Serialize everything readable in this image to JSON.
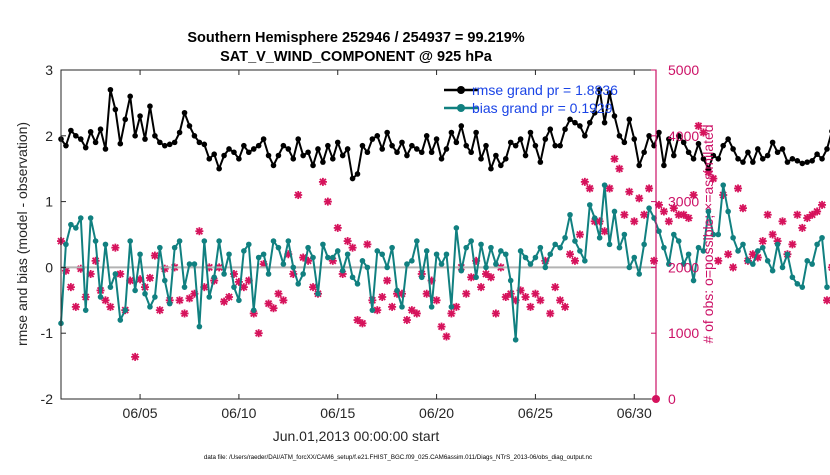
{
  "chart_data": {
    "type": "line",
    "title_line1": "Southern Hemisphere 252946 / 254937 = 99.219%",
    "title_line2": "SAT_V_WIND_COMPONENT @ 925 hPa",
    "xlabel": "Jun.01,2013 00:00:00 start",
    "ylabel_left": "rmse and bias (model - observation)",
    "ylabel_right": "# of obs: o=possible; ×=assimilated",
    "footer": "data file: /Users/raeder/DAI/ATM_forcXX/CAM6_setup/f.e21.FHIST_BGC.f09_025.CAM6assim.011/Diags_NTrS_2013-06/obs_diag_output.nc",
    "xlim": [
      1,
      31.1
    ],
    "ylim_left": [
      -2,
      3
    ],
    "ylim_right": [
      0,
      5000
    ],
    "x_ticks": [
      {
        "x": 5,
        "label": "06/05"
      },
      {
        "x": 10,
        "label": "06/10"
      },
      {
        "x": 15,
        "label": "06/15"
      },
      {
        "x": 20,
        "label": "06/20"
      },
      {
        "x": 25,
        "label": "06/25"
      },
      {
        "x": 30,
        "label": "06/30"
      }
    ],
    "y_ticks_left": [
      -2,
      -1,
      0,
      1,
      2,
      3
    ],
    "y_ticks_right": [
      0,
      1000,
      2000,
      3000,
      4000,
      5000
    ],
    "colors": {
      "rmse": "#000000",
      "bias": "#118080",
      "obs": "#d6135c",
      "right_axis": "#cc1166",
      "zero_line": "#b3b3b3",
      "legend_text": "#1a44e6"
    },
    "legend": [
      {
        "name": "rmse",
        "label": "rmse grand pr = 1.8836"
      },
      {
        "name": "bias",
        "label": "bias grand pr = 0.1929"
      }
    ],
    "series": [
      {
        "name": "rmse",
        "x_start": 1,
        "x_step": 0.25,
        "values": [
          1.95,
          1.85,
          2.08,
          2.0,
          1.95,
          1.82,
          2.06,
          1.9,
          2.1,
          1.8,
          2.7,
          2.4,
          1.88,
          2.25,
          2.6,
          2.0,
          2.3,
          1.95,
          2.45,
          2.0,
          1.9,
          1.85,
          1.87,
          1.9,
          2.05,
          2.35,
          2.15,
          2.0,
          1.9,
          1.87,
          1.65,
          1.72,
          1.5,
          1.7,
          1.8,
          1.75,
          1.65,
          1.85,
          1.75,
          1.8,
          1.85,
          1.95,
          1.7,
          1.55,
          1.7,
          1.85,
          1.8,
          1.65,
          1.95,
          1.7,
          1.75,
          1.55,
          1.8,
          1.6,
          1.85,
          1.65,
          1.9,
          1.7,
          1.8,
          1.35,
          1.42,
          1.85,
          1.75,
          1.95,
          2.0,
          1.8,
          2.05,
          1.85,
          1.75,
          1.9,
          1.7,
          1.85,
          1.8,
          1.75,
          2.0,
          1.75,
          1.95,
          1.65,
          1.8,
          2.05,
          1.9,
          2.15,
          1.85,
          1.75,
          2.05,
          1.65,
          1.85,
          1.5,
          1.7,
          1.55,
          1.65,
          1.9,
          1.85,
          1.95,
          1.7,
          2.05,
          1.85,
          1.6,
          1.95,
          2.1,
          1.85,
          1.85,
          2.1,
          2.25,
          2.2,
          2.15,
          2.0,
          2.2,
          2.35,
          2.7,
          2.2,
          2.65,
          2.3,
          2.0,
          1.9,
          2.25,
          1.95,
          1.55,
          1.75,
          2.0,
          1.85,
          2.05,
          1.55,
          1.95,
          1.7,
          2.0,
          1.9,
          1.75,
          1.65,
          1.88,
          1.65,
          1.5,
          1.7,
          1.65,
          1.85,
          1.95,
          1.8,
          1.65,
          1.6,
          1.75,
          1.6,
          1.8,
          1.65,
          1.7,
          1.9,
          1.75,
          1.8,
          1.6,
          1.65,
          1.62,
          1.58,
          1.6,
          1.62,
          1.72,
          1.65,
          1.8,
          2.07
        ]
      },
      {
        "name": "bias",
        "x_start": 1,
        "x_step": 0.25,
        "values": [
          -0.85,
          0.35,
          0.65,
          0.6,
          0.75,
          -0.65,
          0.75,
          0.4,
          -0.45,
          0.35,
          -0.3,
          -0.1,
          -0.8,
          -0.65,
          0.4,
          -0.35,
          0.2,
          -0.4,
          -0.6,
          -0.45,
          0.3,
          -0.2,
          -0.55,
          0.3,
          0.4,
          -0.3,
          0.05,
          0.05,
          -0.9,
          0.4,
          -0.45,
          -0.15,
          0.4,
          -0.1,
          0.2,
          -0.3,
          -0.5,
          0.25,
          0.35,
          -0.65,
          0.15,
          0.2,
          -0.1,
          0.4,
          0.3,
          0.05,
          0.4,
          0.0,
          -0.25,
          -0.1,
          0.3,
          0.15,
          -0.4,
          0.35,
          0.15,
          0.15,
          0.25,
          -0.05,
          0.2,
          -0.15,
          -0.25,
          0.1,
          0.0,
          -0.65,
          0.25,
          0.2,
          0.0,
          0.3,
          -0.35,
          -0.6,
          0.05,
          0.1,
          0.4,
          -0.15,
          0.25,
          -0.6,
          0.2,
          0.05,
          0.2,
          -0.6,
          0.6,
          -0.05,
          0.3,
          0.4,
          -0.15,
          0.35,
          0.0,
          0.3,
          0.05,
          0.25,
          0.2,
          -0.2,
          -1.1,
          0.25,
          0.15,
          0.05,
          0.15,
          0.3,
          0.0,
          0.2,
          0.35,
          0.3,
          0.45,
          0.8,
          0.4,
          0.25,
          0.1,
          0.95,
          0.75,
          0.45,
          1.25,
          0.35,
          0.85,
          0.3,
          0.5,
          0.0,
          0.15,
          -0.1,
          0.35,
          0.9,
          0.75,
          0.55,
          0.3,
          0.05,
          0.5,
          0.4,
          0.05,
          0.2,
          -0.2,
          0.3,
          0.25,
          0.85,
          0.5,
          0.5,
          1.25,
          0.85,
          0.45,
          0.25,
          0.35,
          0.1,
          0.05,
          0.25,
          0.3,
          0.1,
          -0.05,
          0.35,
          0.0,
          0.2,
          -0.15,
          -0.25,
          -0.3,
          0.1,
          0.05,
          0.35,
          0.45,
          -0.3
        ]
      },
      {
        "name": "obs_assimilated",
        "x_start": 1,
        "x_step": 0.25,
        "values": [
          2400,
          1950,
          1700,
          1400,
          1980,
          1550,
          1900,
          2100,
          1650,
          1500,
          1400,
          2300,
          1900,
          1350,
          1800,
          640,
          1820,
          1700,
          1840,
          2180,
          1350,
          1980,
          1500,
          2000,
          1500,
          1300,
          1530,
          1600,
          2550,
          1700,
          2000,
          1800,
          2000,
          1480,
          1550,
          1900,
          1780,
          1700,
          1800,
          1300,
          1000,
          2050,
          1450,
          1380,
          1600,
          1500,
          2200,
          1900,
          3100,
          2150,
          2100,
          1700,
          1600,
          3300,
          3000,
          2100,
          2600,
          1900,
          2400,
          2300,
          1200,
          1150,
          2350,
          1500,
          1350,
          1550,
          1800,
          1400,
          1600,
          1600,
          1200,
          1350,
          1300,
          1900,
          1600,
          1800,
          1500,
          1100,
          950,
          1300,
          1400,
          2000,
          1600,
          1850,
          2100,
          1700,
          1900,
          1850,
          1300,
          2000,
          1550,
          1600,
          1500,
          1650,
          1550,
          1400,
          1600,
          1500,
          2100,
          1300,
          1700,
          1500,
          1400,
          2200,
          2100,
          2500,
          3300,
          3200,
          2700,
          2700,
          2550,
          3200,
          3650,
          3500,
          2800,
          3150,
          2700,
          3050,
          2800,
          3200,
          2100,
          2950,
          2850,
          2700,
          2900,
          2800,
          2800,
          2750,
          3100,
          4150,
          4050,
          3450,
          3350,
          2100,
          3100,
          2200,
          2000,
          3200,
          2900,
          2100,
          2200,
          2150,
          2400,
          2800,
          2500,
          2400,
          2700,
          2200,
          2350,
          2800,
          2600,
          2750,
          2800,
          2850,
          2950,
          1500,
          2000,
          0
        ]
      }
    ]
  }
}
